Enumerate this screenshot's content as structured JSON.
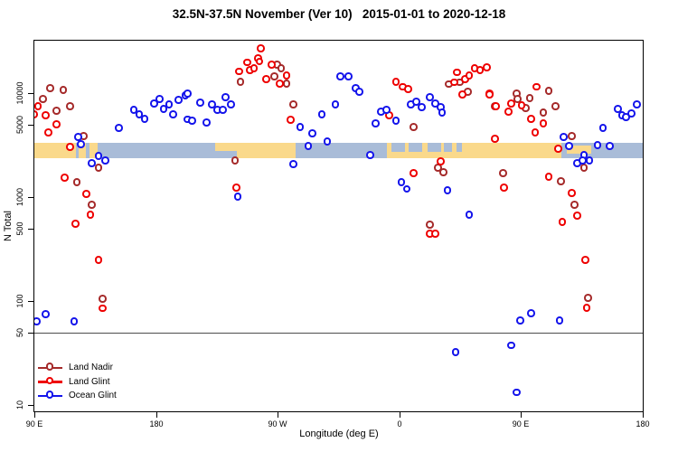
{
  "chart_data": {
    "type": "scatter",
    "title": "32.5N-37.5N November (Ver 10)   2015-01-01 to 2020-12-18",
    "xlabel": "Longitude (deg E)",
    "ylabel": "N Total",
    "x_axis": {
      "range": [
        90,
        540
      ],
      "ticks": [
        {
          "value": 90,
          "label": "90 E"
        },
        {
          "value": 180,
          "label": "180"
        },
        {
          "value": 270,
          "label": "90 W"
        },
        {
          "value": 360,
          "label": "0"
        },
        {
          "value": 450,
          "label": "90 E"
        },
        {
          "value": 540,
          "label": "180"
        }
      ]
    },
    "y_axis": {
      "scale": "log",
      "range": [
        9,
        32000
      ],
      "ticks": [
        {
          "value": 10000,
          "label": "10000"
        },
        {
          "value": 5000,
          "label": "5000"
        },
        {
          "value": 1000,
          "label": "1000"
        },
        {
          "value": 500,
          "label": "500"
        },
        {
          "value": 100,
          "label": "100"
        },
        {
          "value": 50,
          "label": "50"
        },
        {
          "value": 10,
          "label": "10"
        }
      ]
    },
    "reference_line_y": 50,
    "map_strip": {
      "description": "world land/ocean strip for latitude band 32.5N-37.5N",
      "ocean_color": "#a9bcd8",
      "land_color": "#fad98b",
      "value_center": 2800,
      "land_segments_lon": [
        {
          "lon": [
            90,
            121
          ]
        },
        {
          "lon": [
            123,
            128
          ]
        },
        {
          "lon": [
            131,
            137
          ]
        },
        {
          "lon": [
            224,
            240
          ],
          "half": "top"
        },
        {
          "lon": [
            240,
            283
          ]
        },
        {
          "lon": [
            351,
            480
          ]
        },
        {
          "lon": [
            484,
            502
          ],
          "half": "mid"
        }
      ],
      "sea_patches_lon": [
        {
          "lon": [
            354,
            364
          ]
        },
        {
          "lon": [
            367,
            377
          ]
        },
        {
          "lon": [
            381,
            391
          ]
        },
        {
          "lon": [
            393,
            399
          ]
        },
        {
          "lon": [
            402,
            406
          ]
        }
      ]
    },
    "series": [
      {
        "name": "Land Nadir",
        "color": "#a52a2a",
        "points": [
          [
            102,
            11000
          ],
          [
            112,
            10600
          ],
          [
            97,
            8700
          ],
          [
            117,
            7400
          ],
          [
            107,
            6700
          ],
          [
            127,
            3830
          ],
          [
            138,
            1900
          ],
          [
            122,
            1380
          ],
          [
            133,
            835
          ],
          [
            141,
            104
          ],
          [
            270,
            18600
          ],
          [
            273,
            17200
          ],
          [
            268,
            14300
          ],
          [
            243,
            12700
          ],
          [
            277,
            12200
          ],
          [
            282,
            7700
          ],
          [
            239,
            2230
          ],
          [
            371,
            4680
          ],
          [
            383,
            537
          ],
          [
            389,
            1900
          ],
          [
            393,
            1720
          ],
          [
            397,
            12000
          ],
          [
            405,
            12500
          ],
          [
            411,
            10200
          ],
          [
            431,
            7400
          ],
          [
            437,
            1680
          ],
          [
            447,
            9800
          ],
          [
            448,
            8700
          ],
          [
            454,
            7100
          ],
          [
            457,
            8870
          ],
          [
            471,
            10400
          ],
          [
            467,
            6440
          ],
          [
            476,
            7400
          ],
          [
            480,
            1400
          ],
          [
            488,
            3830
          ],
          [
            490,
            835
          ],
          [
            497,
            1900
          ],
          [
            500,
            106
          ]
        ]
      },
      {
        "name": "Land Glint",
        "color": "#ee0000",
        "points": [
          [
            93,
            7400
          ],
          [
            90,
            6180
          ],
          [
            99,
            6070
          ],
          [
            107,
            4960
          ],
          [
            101,
            4140
          ],
          [
            117,
            3010
          ],
          [
            113,
            1520
          ],
          [
            129,
            1060
          ],
          [
            132,
            670
          ],
          [
            121,
            548
          ],
          [
            138,
            246
          ],
          [
            141,
            84
          ],
          [
            258,
            26700
          ],
          [
            256,
            21400
          ],
          [
            248,
            19400
          ],
          [
            257,
            19800
          ],
          [
            242,
            15900
          ],
          [
            250,
            16500
          ],
          [
            253,
            17200
          ],
          [
            266,
            18600
          ],
          [
            262,
            13500
          ],
          [
            277,
            14600
          ],
          [
            272,
            12200
          ],
          [
            280,
            5480
          ],
          [
            240,
            1220
          ],
          [
            358,
            12700
          ],
          [
            363,
            11300
          ],
          [
            367,
            10800
          ],
          [
            353,
            6070
          ],
          [
            403,
            15600
          ],
          [
            401,
            12500
          ],
          [
            409,
            13500
          ],
          [
            412,
            14600
          ],
          [
            416,
            17200
          ],
          [
            420,
            16500
          ],
          [
            425,
            17500
          ],
          [
            407,
            9610
          ],
          [
            427,
            9800
          ],
          [
            431,
            3600
          ],
          [
            391,
            2180
          ],
          [
            371,
            1680
          ],
          [
            383,
            440
          ],
          [
            387,
            440
          ],
          [
            427,
            9610
          ],
          [
            432,
            7400
          ],
          [
            443,
            7870
          ],
          [
            441,
            6570
          ],
          [
            451,
            7550
          ],
          [
            462,
            11300
          ],
          [
            458,
            5600
          ],
          [
            467,
            5060
          ],
          [
            461,
            4140
          ],
          [
            478,
            2890
          ],
          [
            471,
            1550
          ],
          [
            488,
            1080
          ],
          [
            492,
            656
          ],
          [
            481,
            571
          ],
          [
            438,
            1220
          ],
          [
            498,
            246
          ],
          [
            499,
            85
          ]
        ]
      },
      {
        "name": "Ocean Glint",
        "color": "#1414eb",
        "points": [
          [
            123,
            3750
          ],
          [
            125,
            3180
          ],
          [
            138,
            2460
          ],
          [
            133,
            2100
          ],
          [
            143,
            2230
          ],
          [
            153,
            4580
          ],
          [
            164,
            6840
          ],
          [
            168,
            6180
          ],
          [
            172,
            5600
          ],
          [
            179,
            7870
          ],
          [
            183,
            8700
          ],
          [
            186,
            6970
          ],
          [
            190,
            7700
          ],
          [
            193,
            6180
          ],
          [
            197,
            8520
          ],
          [
            202,
            9420
          ],
          [
            204,
            5500
          ],
          [
            204,
            9800
          ],
          [
            213,
            8020
          ],
          [
            232,
            9030
          ],
          [
            236,
            7700
          ],
          [
            222,
            7700
          ],
          [
            226,
            6840
          ],
          [
            230,
            6840
          ],
          [
            207,
            5380
          ],
          [
            218,
            5170
          ],
          [
            317,
            14300
          ],
          [
            313,
            7700
          ],
          [
            303,
            6180
          ],
          [
            287,
            4680
          ],
          [
            296,
            4060
          ],
          [
            307,
            3380
          ],
          [
            293,
            3070
          ],
          [
            282,
            2050
          ],
          [
            241,
            1000
          ],
          [
            323,
            14300
          ],
          [
            328,
            11000
          ],
          [
            331,
            10200
          ],
          [
            347,
            6570
          ],
          [
            351,
            6840
          ],
          [
            358,
            5380
          ],
          [
            343,
            5060
          ],
          [
            369,
            7700
          ],
          [
            373,
            8180
          ],
          [
            377,
            7260
          ],
          [
            383,
            9030
          ],
          [
            387,
            7870
          ],
          [
            391,
            7260
          ],
          [
            392,
            6440
          ],
          [
            339,
            2510
          ],
          [
            362,
            1380
          ],
          [
            366,
            1180
          ],
          [
            396,
            1150
          ],
          [
            412,
            670
          ],
          [
            482,
            3750
          ],
          [
            486,
            3070
          ],
          [
            497,
            2510
          ],
          [
            492,
            2100
          ],
          [
            496,
            2230
          ],
          [
            501,
            2230
          ],
          [
            507,
            3130
          ],
          [
            511,
            4580
          ],
          [
            516,
            3070
          ],
          [
            522,
            6970
          ],
          [
            525,
            6070
          ],
          [
            528,
            5830
          ],
          [
            532,
            6310
          ],
          [
            536,
            7700
          ],
          [
            99,
            74
          ],
          [
            92,
            63
          ],
          [
            120,
            63
          ],
          [
            450,
            64
          ],
          [
            458,
            75
          ],
          [
            479,
            64
          ],
          [
            402,
            32
          ],
          [
            443,
            37
          ],
          [
            447,
            13
          ]
        ]
      }
    ]
  }
}
